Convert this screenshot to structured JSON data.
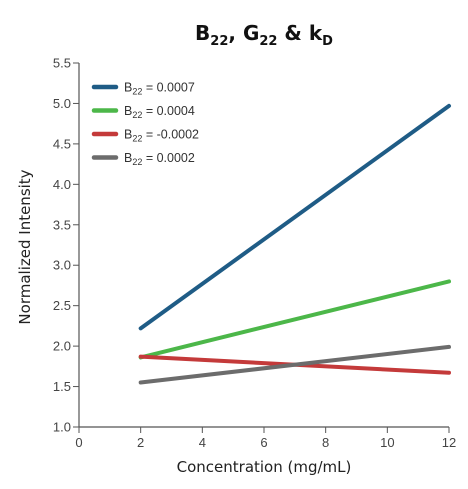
{
  "chart_data": {
    "type": "line",
    "title_parts": [
      {
        "text": "B",
        "sub": "22"
      },
      {
        "text": ", G",
        "sub": "22"
      },
      {
        "text": " & k",
        "sub": "D"
      }
    ],
    "xlabel": "Concentration (mg/mL)",
    "ylabel": "Normalized Intensity",
    "xlim": [
      0,
      12
    ],
    "ylim": [
      1.0,
      5.5
    ],
    "xticks": [
      0,
      2,
      4,
      6,
      8,
      10,
      12
    ],
    "yticks": [
      1.0,
      1.5,
      2.0,
      2.5,
      3.0,
      3.5,
      4.0,
      4.5,
      5.0,
      5.5
    ],
    "grid": false,
    "legend_position": "top-left",
    "series": [
      {
        "name": "B22 = 0.0007",
        "label_base": "B",
        "label_sub": "22",
        "label_rest": " = 0.0007",
        "color": "#1f5c86",
        "x": [
          2,
          12
        ],
        "y": [
          2.22,
          4.97
        ]
      },
      {
        "name": "B22 = 0.0004",
        "label_base": "B",
        "label_sub": "22",
        "label_rest": " = 0.0004",
        "color": "#4cb749",
        "x": [
          2,
          12
        ],
        "y": [
          1.86,
          2.8
        ]
      },
      {
        "name": "B22 = -0.0002",
        "label_base": "B",
        "label_sub": "22",
        "label_rest": " = -0.0002",
        "color": "#c43a3a",
        "x": [
          2,
          12
        ],
        "y": [
          1.87,
          1.67
        ]
      },
      {
        "name": "B22 = 0.0002",
        "label_base": "B",
        "label_sub": "22",
        "label_rest": " = 0.0002",
        "color": "#6c6c6c",
        "x": [
          2,
          12
        ],
        "y": [
          1.55,
          1.99
        ]
      }
    ]
  }
}
